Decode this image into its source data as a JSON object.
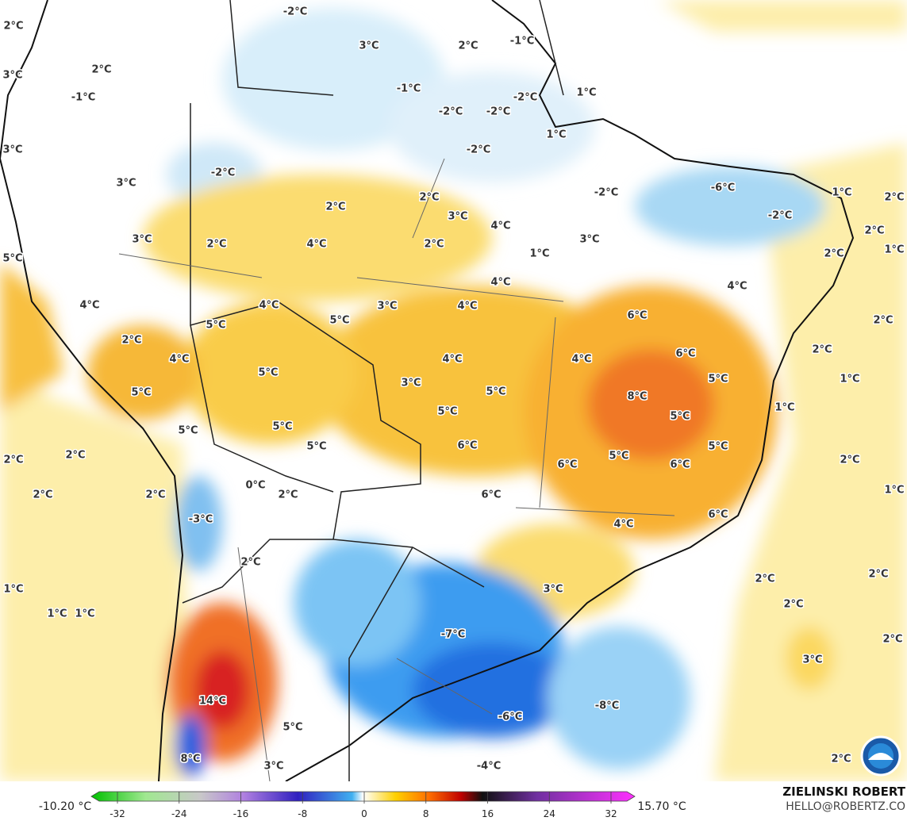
{
  "map": {
    "labels": [
      "2°C",
      "-2°C",
      "3°C",
      "2°C",
      "-1°C",
      "3°C",
      "2°C",
      "-1°C",
      "-1°C",
      "-2°C",
      "-2°C",
      "-2°C",
      "1°C",
      "3°C",
      "-2°C",
      "1°C",
      "-2°C",
      "3°C",
      "-6°C",
      "1°C",
      "2°C",
      "-2°C",
      "2°C",
      "2°C",
      "-2°C",
      "3°C",
      "4°C",
      "2°C",
      "3°C",
      "2°C",
      "4°C",
      "2°C",
      "3°C",
      "1°C",
      "2°C",
      "1°C",
      "5°C",
      "4°C",
      "4°C",
      "4°C",
      "4°C",
      "3°C",
      "4°C",
      "6°C",
      "2°C",
      "5°C",
      "5°C",
      "2°C",
      "2°C",
      "6°C",
      "4°C",
      "4°C",
      "4°C",
      "5°C",
      "1°C",
      "5°C",
      "3°C",
      "5°C",
      "5°C",
      "8°C",
      "1°C",
      "5°C",
      "5°C",
      "5°C",
      "5°C",
      "6°C",
      "5°C",
      "5°C",
      "2°C",
      "2°C",
      "5°C",
      "6°C",
      "6°C",
      "2°C",
      "0°C",
      "2°C",
      "2°C",
      "2°C",
      "6°C",
      "1°C",
      "6°C",
      "4°C",
      "-3°C",
      "2°C",
      "2°C",
      "2°C",
      "3°C",
      "1°C",
      "2°C",
      "1°C",
      "1°C",
      "-7°C",
      "2°C",
      "3°C",
      "14°C",
      "-8°C",
      "-6°C",
      "5°C",
      "8°C",
      "2°C",
      "3°C",
      "-4°C"
    ]
  },
  "colorbar": {
    "ticks": [
      -32,
      -24,
      -16,
      -8,
      0,
      8,
      16,
      24,
      32
    ],
    "min_label": "-10.20 °C",
    "max_label": "15.70 °C"
  },
  "credit": {
    "author": "ZIELINSKI ROBERT",
    "contact": "HELLO@ROBERTZ.CO"
  }
}
